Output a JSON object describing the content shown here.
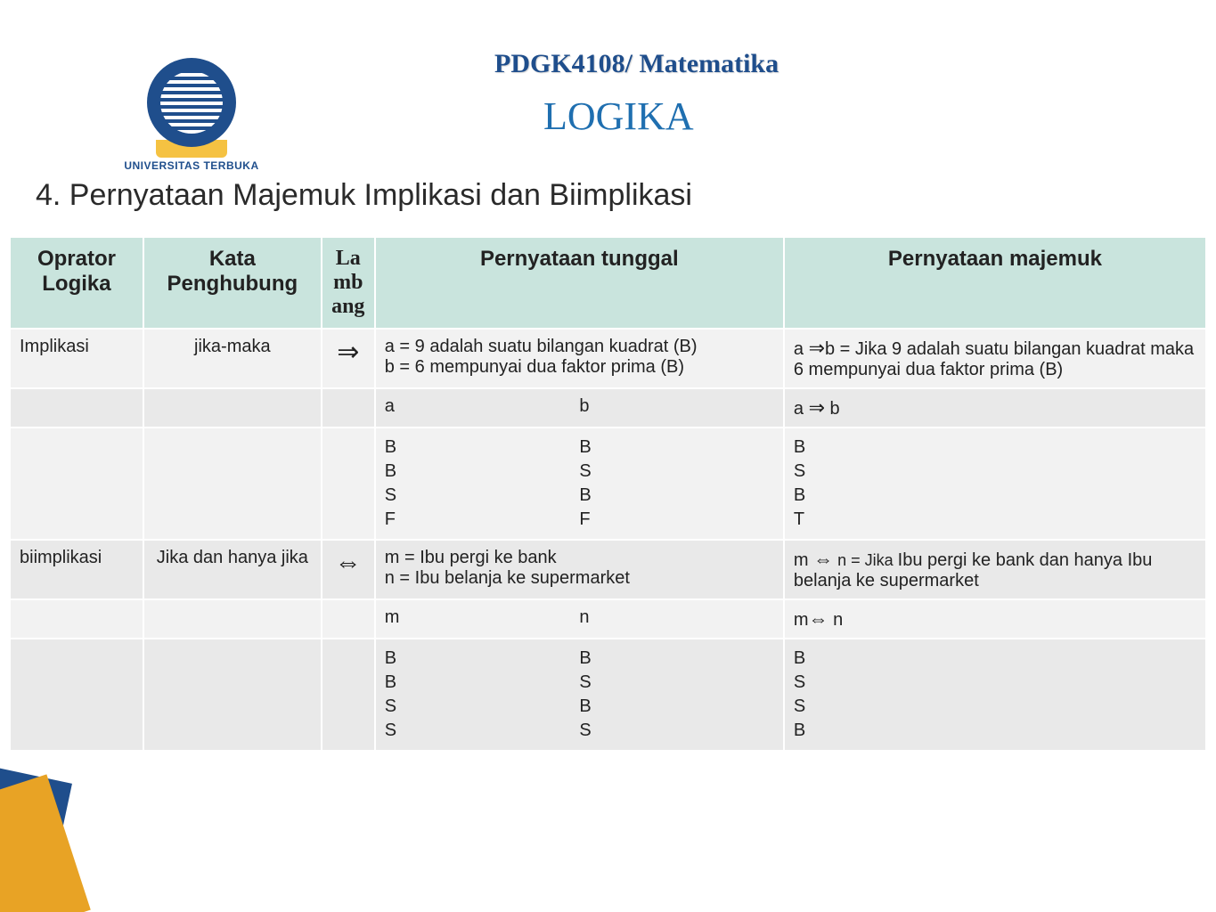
{
  "header": {
    "course": "PDGK4108/ Matematika",
    "title": "LOGIKA",
    "logo_label": "UNIVERSITAS TERBUKA"
  },
  "section": {
    "heading": "4. Pernyataan Majemuk Implikasi dan Biimplikasi"
  },
  "table": {
    "columns": [
      "Oprator Logika",
      "Kata Penghubung",
      "La mb ang",
      "Pernyataan tunggal",
      "Pernyataan majemuk"
    ],
    "rows": [
      {
        "operator": "Implikasi",
        "kata": "jika-maka",
        "lambang": "⇒",
        "tunggal": "a = 9 adalah suatu bilangan kuadrat (B)\nb =  6 mempunyai dua faktor prima (B)",
        "majemuk_prefix": "a   ",
        "majemuk_sym": "⇒",
        "majemuk_suffix": "b = Jika 9 adalah suatu bilangan kuadrat maka 6 mempunyai dua faktor prima  (B)"
      },
      {
        "tunggal_a": "a",
        "tunggal_b": "b",
        "majemuk_label_a": "a ",
        "majemuk_sym": "⇒",
        "majemuk_label_b": " b"
      },
      {
        "col_a": "B\nB\nS\nF",
        "col_b": "B\nS\nB\nF",
        "col_r": "B\nS\nB\nT"
      },
      {
        "operator": "biimplikasi",
        "kata": "Jika dan hanya jika",
        "lambang": "⇔",
        "tunggal": "m = Ibu pergi ke bank\nn = Ibu belanja ke supermarket",
        "majemuk_prefix": "m ",
        "majemuk_sym": "⇔",
        "majemuk_mid": " n  = Jika ",
        "majemuk_suffix": "Ibu pergi ke bank dan hanya Ibu belanja ke supermarket"
      },
      {
        "tunggal_a": "m",
        "tunggal_b": "n",
        "majemuk_label_a": "m",
        "majemuk_sym": "⇔",
        "majemuk_label_b": "  n"
      },
      {
        "col_a": "B\nB\nS\nS",
        "col_b": "B\nS\nB\nS",
        "col_r": "B\nS\nS\nB"
      }
    ]
  },
  "colors": {
    "header_bg": "#c9e4dd",
    "band_a": "#f2f2f2",
    "band_b": "#e9e9e9",
    "course_text": "#1f4e8c",
    "title_text": "#1f6fb0",
    "accent_yellow": "#e8a325",
    "accent_blue": "#1f4e8c"
  }
}
